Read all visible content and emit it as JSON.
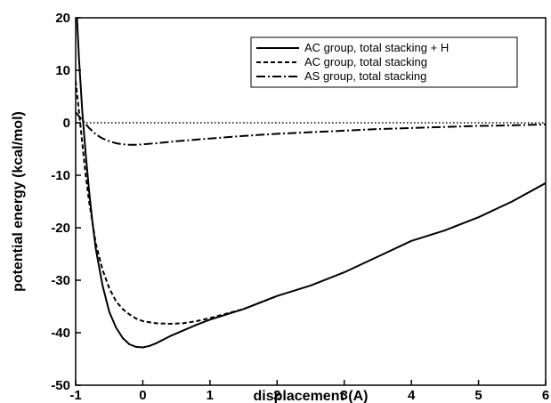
{
  "chart_data": {
    "type": "line",
    "title": "",
    "xlabel": "displacement (A)",
    "ylabel": "potential energy (kcal/mol)",
    "xlim": [
      -1,
      6
    ],
    "ylim": [
      -50,
      20
    ],
    "xticks": [
      -1,
      0,
      1,
      2,
      3,
      4,
      5,
      6
    ],
    "yticks": [
      20,
      10,
      0,
      -10,
      -20,
      -30,
      -40,
      -50
    ],
    "grid": false,
    "legend_position": "top-right",
    "reference_line": {
      "y": 0,
      "style": "dotted"
    },
    "series": [
      {
        "name": "AC group, total stacking + H",
        "style": "solid",
        "color": "#000000",
        "x": [
          -0.98,
          -0.95,
          -0.9,
          -0.85,
          -0.8,
          -0.75,
          -0.7,
          -0.6,
          -0.5,
          -0.4,
          -0.3,
          -0.2,
          -0.1,
          0.0,
          0.1,
          0.2,
          0.4,
          0.6,
          0.8,
          1.0,
          1.5,
          2.0,
          2.5,
          3.0,
          3.5,
          4.0,
          4.5,
          5.0,
          5.5,
          6.0
        ],
        "y": [
          20,
          12,
          2,
          -6,
          -13,
          -19,
          -24,
          -31,
          -36,
          -39,
          -41,
          -42.2,
          -42.7,
          -42.8,
          -42.5,
          -42,
          -40.7,
          -39.6,
          -38.5,
          -37.5,
          -35.5,
          -33,
          -31,
          -28.5,
          -25.5,
          -22.5,
          -20.5,
          -18,
          -15,
          -11.5
        ]
      },
      {
        "name": "AC group, total stacking",
        "style": "dashed",
        "color": "#000000",
        "x": [
          -1.0,
          -0.95,
          -0.9,
          -0.85,
          -0.8,
          -0.75,
          -0.7,
          -0.6,
          -0.5,
          -0.4,
          -0.3,
          -0.2,
          -0.1,
          0.0,
          0.2,
          0.4,
          0.6,
          0.8,
          1.0,
          1.5,
          2.0
        ],
        "y": [
          8,
          2,
          -4,
          -10,
          -15,
          -19,
          -23,
          -28,
          -31.5,
          -34,
          -35.5,
          -36.5,
          -37.3,
          -37.8,
          -38.2,
          -38.3,
          -38.2,
          -37.8,
          -37.2,
          -35.5,
          -33
        ]
      },
      {
        "name": "AS group, total stacking",
        "style": "dash-dot",
        "color": "#000000",
        "x": [
          -1.0,
          -0.9,
          -0.8,
          -0.7,
          -0.6,
          -0.5,
          -0.4,
          -0.3,
          -0.2,
          -0.1,
          0.0,
          0.2,
          0.5,
          1.0,
          1.5,
          2.0,
          2.5,
          3.0,
          3.5,
          4.0,
          4.5,
          5.0,
          5.5,
          6.0
        ],
        "y": [
          2,
          0.5,
          -1,
          -2.2,
          -3,
          -3.5,
          -3.9,
          -4.1,
          -4.2,
          -4.2,
          -4.1,
          -3.9,
          -3.5,
          -3,
          -2.5,
          -2.1,
          -1.8,
          -1.5,
          -1.2,
          -1,
          -0.8,
          -0.6,
          -0.5,
          -0.3
        ]
      }
    ]
  }
}
